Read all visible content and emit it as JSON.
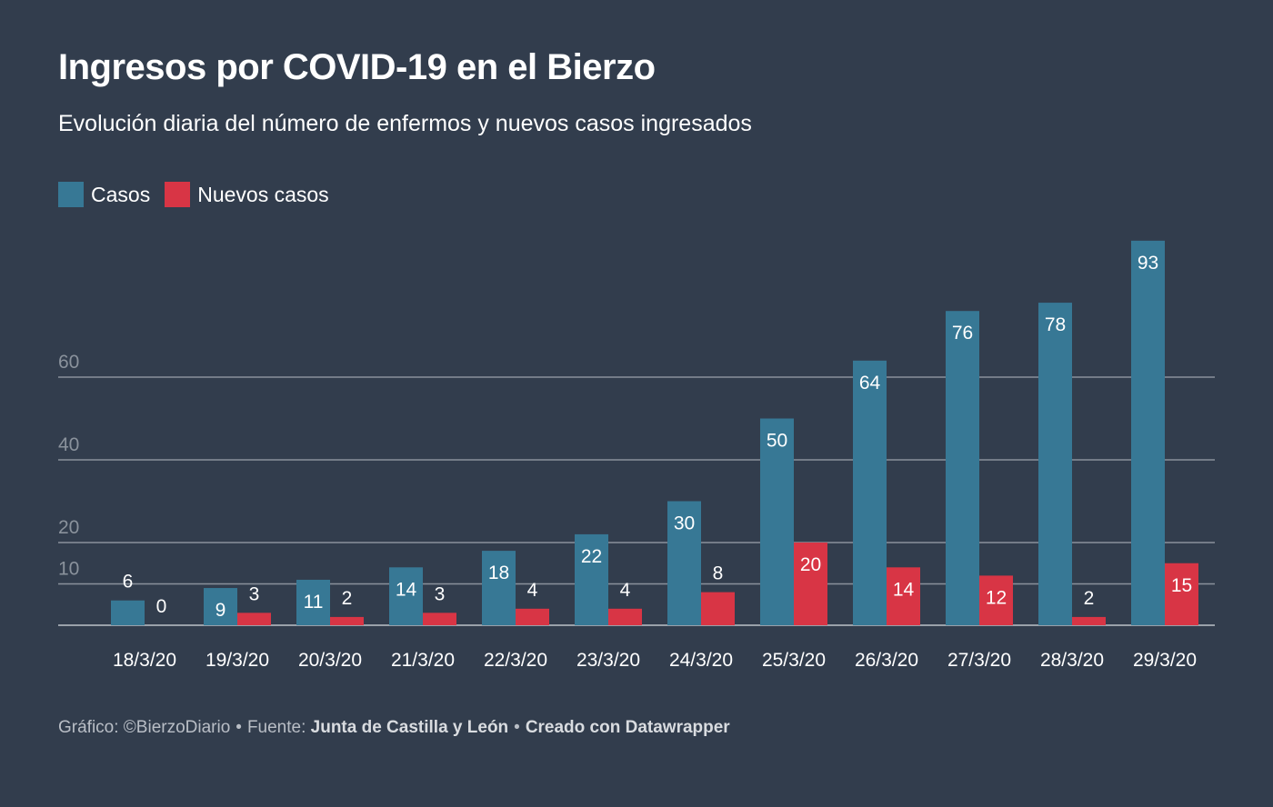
{
  "title": "Ingresos por COVID-19 en el Bierzo",
  "subtitle": "Evolución diaria del número de enfermos y nuevos casos ingresados",
  "legend": [
    {
      "label": "Casos",
      "color": "#377895"
    },
    {
      "label": "Nuevos casos",
      "color": "#d83545"
    }
  ],
  "footer": {
    "prefix": "Gráfico: ©BierzoDiario",
    "source_label": "Fuente:",
    "source": "Junta de Castilla y León",
    "created": "Creado con Datawrapper"
  },
  "chart_data": {
    "type": "bar",
    "categories": [
      "18/3/20",
      "19/3/20",
      "20/3/20",
      "21/3/20",
      "22/3/20",
      "23/3/20",
      "24/3/20",
      "25/3/20",
      "26/3/20",
      "27/3/20",
      "28/3/20",
      "29/3/20"
    ],
    "series": [
      {
        "name": "Casos",
        "color": "#377895",
        "values": [
          6,
          9,
          11,
          14,
          18,
          22,
          30,
          50,
          64,
          76,
          78,
          93
        ]
      },
      {
        "name": "Nuevos casos",
        "color": "#d83545",
        "values": [
          0,
          3,
          2,
          3,
          4,
          4,
          8,
          20,
          14,
          12,
          2,
          15
        ]
      }
    ],
    "yticks": [
      10,
      20,
      40,
      60
    ],
    "ylim": [
      0,
      93
    ],
    "grid": true,
    "legend_position": "top-left"
  }
}
